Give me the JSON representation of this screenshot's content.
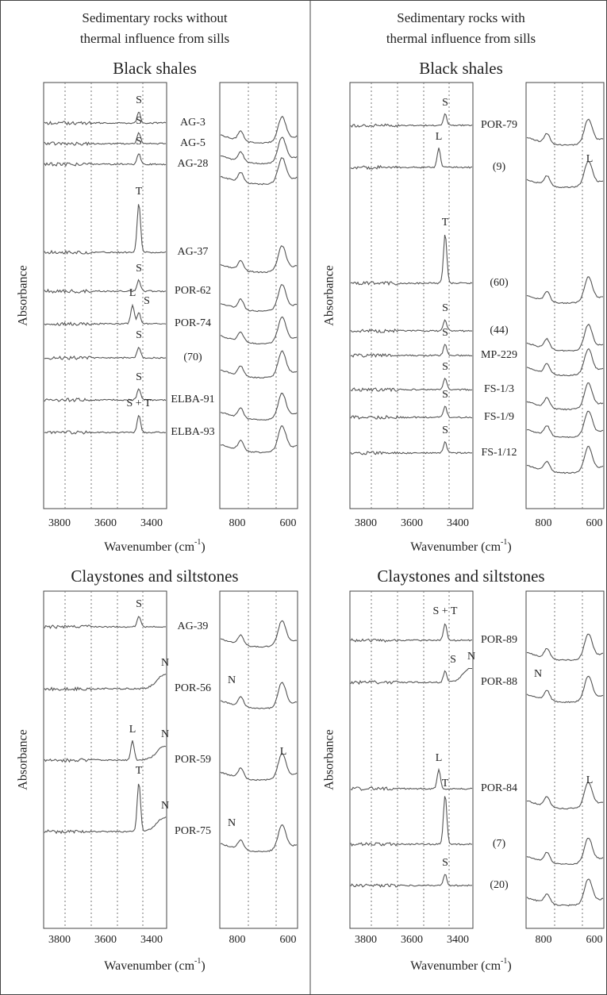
{
  "columns": [
    {
      "heading": [
        "Sedimentary rocks without",
        "thermal influence from sills"
      ],
      "panels": [
        {
          "title": "Black shales",
          "y_label": "Absorbance",
          "x_label": {
            "text": "Wavenumber (cm",
            "sup": "-1",
            "end": ")"
          },
          "ticks_left": [
            "3800",
            "3600",
            "3400"
          ],
          "ticks_right": [
            "800",
            "600"
          ],
          "samples": [
            {
              "label": "AG-3",
              "peaks": [
                "S"
              ]
            },
            {
              "label": "AG-5",
              "peaks": [
                "S"
              ]
            },
            {
              "label": "AG-28",
              "peaks": [
                "S"
              ]
            },
            {
              "label": "AG-37",
              "peaks": [
                "T"
              ]
            },
            {
              "label": "POR-62",
              "peaks": [
                "S"
              ]
            },
            {
              "label": "POR-74",
              "peaks": [
                "L",
                "S"
              ]
            },
            {
              "label": "(70)",
              "peaks": [
                "S"
              ]
            },
            {
              "label": "ELBA-91",
              "peaks": [
                "S"
              ]
            },
            {
              "label": "ELBA-93",
              "peaks": [
                "S + T"
              ]
            }
          ]
        },
        {
          "title": "Claystones and siltstones",
          "y_label": "Absorbance",
          "x_label": {
            "text": "Wavenumber (cm",
            "sup": "-1",
            "end": ")"
          },
          "ticks_left": [
            "3800",
            "3600",
            "3400"
          ],
          "ticks_right": [
            "800",
            "600"
          ],
          "samples": [
            {
              "label": "AG-39",
              "peaks": [
                "S"
              ]
            },
            {
              "label": "POR-56",
              "peaks": [
                "N"
              ],
              "right_peaks": [
                "N"
              ]
            },
            {
              "label": "POR-59",
              "peaks": [
                "L",
                "N"
              ],
              "right_peaks": [
                "L"
              ]
            },
            {
              "label": "POR-75",
              "peaks": [
                "T",
                "N"
              ],
              "right_peaks": [
                "N"
              ]
            }
          ]
        }
      ]
    },
    {
      "heading": [
        "Sedimentary rocks with",
        "thermal influence from sills"
      ],
      "panels": [
        {
          "title": "Black shales",
          "y_label": "Absorbance",
          "x_label": {
            "text": "Wavenumber (cm",
            "sup": "-1",
            "end": ")"
          },
          "ticks_left": [
            "3800",
            "3600",
            "3400"
          ],
          "ticks_right": [
            "800",
            "600"
          ],
          "samples": [
            {
              "label": "POR-79",
              "peaks": [
                "S"
              ]
            },
            {
              "label": "(9)",
              "peaks": [
                "L"
              ],
              "right_peaks": [
                "L"
              ]
            },
            {
              "label": "(60)",
              "peaks": [
                "T"
              ]
            },
            {
              "label": "(44)",
              "peaks": [
                "S"
              ]
            },
            {
              "label": "MP-229",
              "peaks": [
                "S"
              ]
            },
            {
              "label": "FS-1/3",
              "peaks": [
                "S"
              ]
            },
            {
              "label": "FS-1/9",
              "peaks": [
                "S"
              ]
            },
            {
              "label": "FS-1/12",
              "peaks": [
                "S"
              ]
            }
          ]
        },
        {
          "title": "Claystones and siltstones",
          "y_label": "Absorbance",
          "x_label": {
            "text": "Wavenumber (cm",
            "sup": "-1",
            "end": ")"
          },
          "ticks_left": [
            "3800",
            "3600",
            "3400"
          ],
          "ticks_right": [
            "800",
            "600"
          ],
          "samples": [
            {
              "label": "POR-89",
              "peaks": [
                "S + T"
              ]
            },
            {
              "label": "POR-88",
              "peaks": [
                "S",
                "N"
              ],
              "right_peaks": [
                "N"
              ]
            },
            {
              "label": "POR-84",
              "peaks": [
                "L"
              ],
              "right_peaks": [
                "L"
              ]
            },
            {
              "label": "(7)",
              "peaks": [
                "T"
              ]
            },
            {
              "label": "(20)",
              "peaks": [
                "S"
              ]
            }
          ]
        }
      ]
    }
  ]
}
